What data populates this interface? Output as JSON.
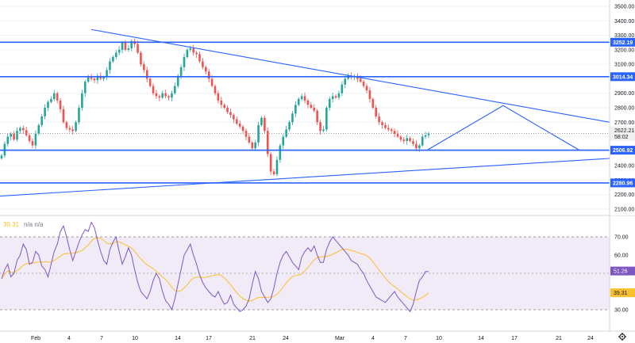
{
  "chart_data": [
    {
      "type": "candlestick",
      "title": "",
      "ylim": [
        2100,
        3500
      ],
      "y_ticks": [
        "3500.00",
        "3400.00",
        "3300.00",
        "3200.00",
        "3100.00",
        "3000.00",
        "2900.00",
        "2800.00",
        "2700.00",
        "2600.00",
        "2500.00",
        "2400.00",
        "2300.00",
        "2200.00",
        "2100.00"
      ],
      "x_ticks": [
        "Feb",
        "4",
        "7",
        "10",
        "14",
        "17",
        "21",
        "24",
        "Mar",
        "4",
        "7",
        "10",
        "14",
        "17",
        "21",
        "24"
      ],
      "price_label": "2622.21",
      "countdown": "58:02",
      "horizontal_levels": [
        {
          "value": 3252.19,
          "label": "3252.19"
        },
        {
          "value": 3014.34,
          "label": "3014.34"
        },
        {
          "value": 2506.92,
          "label": "2506.92"
        },
        {
          "value": 2280.96,
          "label": "2280.96"
        }
      ],
      "trendlines": [
        {
          "name": "descending resistance",
          "from": [
            0,
            3340
          ],
          "to": [
            1,
            2700
          ]
        },
        {
          "name": "ascending support",
          "from": [
            0,
            2190
          ],
          "to": [
            1,
            2450
          ]
        }
      ],
      "projection_path": [
        2506.92,
        2815,
        2506.92
      ],
      "bull_color": "#26a69a",
      "bear_color": "#ef5350",
      "line_color": "#2962ff",
      "closes": [
        2470,
        2550,
        2600,
        2620,
        2580,
        2640,
        2660,
        2645,
        2610,
        2570,
        2540,
        2620,
        2680,
        2740,
        2800,
        2840,
        2860,
        2900,
        2850,
        2790,
        2700,
        2660,
        2650,
        2640,
        2700,
        2800,
        2900,
        2980,
        3010,
        3000,
        2990,
        3020,
        3000,
        3010,
        3060,
        3120,
        3150,
        3180,
        3200,
        3250,
        3200,
        3210,
        3260,
        3240,
        3180,
        3100,
        3060,
        3000,
        2950,
        2900,
        2880,
        2870,
        2900,
        2880,
        2870,
        2900,
        2950,
        3020,
        3080,
        3150,
        3200,
        3210,
        3180,
        3170,
        3120,
        3080,
        3050,
        3000,
        2950,
        2900,
        2850,
        2820,
        2800,
        2770,
        2750,
        2720,
        2690,
        2670,
        2640,
        2600,
        2560,
        2520,
        2560,
        2680,
        2730,
        2640,
        2480,
        2360,
        2340,
        2440,
        2540,
        2600,
        2650,
        2700,
        2760,
        2820,
        2860,
        2880,
        2850,
        2820,
        2800,
        2780,
        2700,
        2640,
        2650,
        2800,
        2860,
        2880,
        2870,
        2900,
        2960,
        3000,
        3020,
        3010,
        3020,
        3000,
        2980,
        2950,
        2920,
        2860,
        2800,
        2740,
        2700,
        2680,
        2660,
        2650,
        2640,
        2620,
        2600,
        2580,
        2570,
        2590,
        2570,
        2550,
        2520,
        2540,
        2600,
        2610,
        2622
      ],
      "rsi": {
        "label": "39.31",
        "title": "n/a n/a",
        "ylim": [
          20,
          80
        ],
        "y_ticks": [
          "70.00",
          "60.00",
          "50.00",
          "40.00",
          "30.00"
        ],
        "band": [
          30,
          70
        ],
        "value_label": "51.26",
        "ma_label": "39.31",
        "rsi_color": "#7e57c2",
        "ma_color": "#fbc02d",
        "rsi_values": [
          47,
          52,
          55,
          48,
          50,
          57,
          60,
          66,
          63,
          55,
          56,
          62,
          60,
          54,
          52,
          48,
          55,
          62,
          66,
          73,
          76,
          70,
          63,
          57,
          62,
          67,
          71,
          74,
          73,
          78,
          75,
          68,
          62,
          57,
          55,
          63,
          67,
          70,
          62,
          55,
          59,
          64,
          60,
          52,
          45,
          40,
          38,
          36,
          40,
          46,
          50,
          47,
          40,
          35,
          33,
          30,
          36,
          44,
          52,
          60,
          63,
          66,
          60,
          55,
          49,
          45,
          42,
          40,
          38,
          37,
          40,
          36,
          33,
          34,
          38,
          33,
          31,
          29,
          30,
          32,
          36,
          44,
          51,
          47,
          40,
          37,
          34,
          36,
          42,
          50,
          56,
          60,
          62,
          59,
          56,
          54,
          52,
          59,
          62,
          64,
          62,
          65,
          60,
          56,
          56,
          63,
          67,
          70,
          68,
          66,
          64,
          62,
          60,
          57,
          56,
          55,
          52,
          50,
          46,
          43,
          40,
          37,
          36,
          35,
          34,
          36,
          38,
          40,
          37,
          35,
          33,
          31,
          29,
          33,
          40,
          46,
          48,
          51,
          51
        ]
      }
    }
  ]
}
